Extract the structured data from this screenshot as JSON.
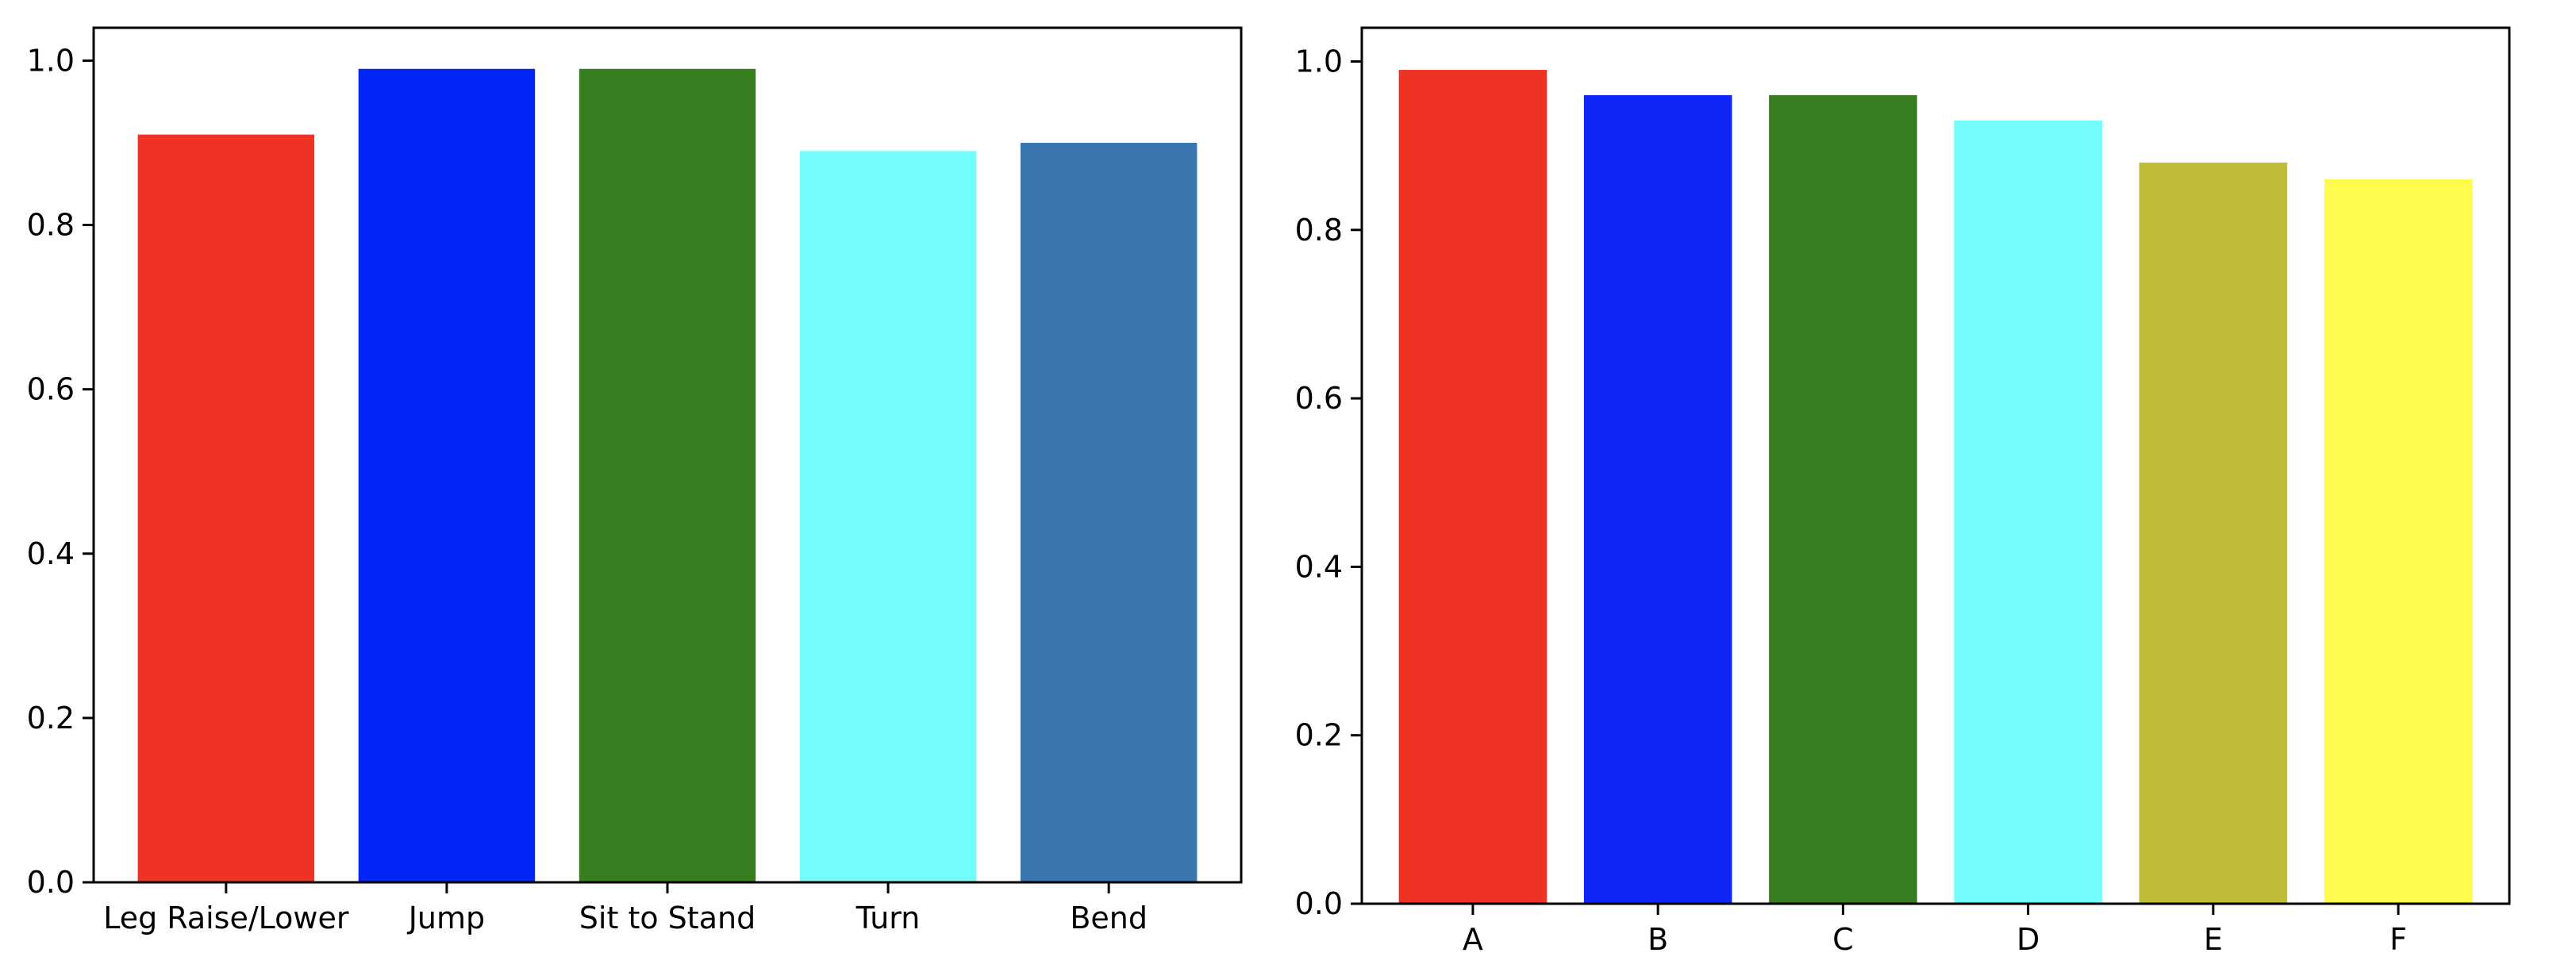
{
  "chart_data": [
    {
      "type": "bar",
      "categories": [
        "Leg Raise/Lower",
        "Jump",
        "Sit to Stand",
        "Turn",
        "Bend"
      ],
      "values": [
        0.91,
        0.99,
        0.99,
        0.89,
        0.9
      ],
      "colors": [
        "#ee3224",
        "#0226f5",
        "#397d21",
        "#72fcfc",
        "#3a77b0"
      ],
      "title": "",
      "xlabel": "",
      "ylabel": "",
      "ylim": [
        0,
        1.04
      ],
      "yticks": [
        0.0,
        0.2,
        0.4,
        0.6,
        0.8,
        1.0
      ],
      "ytick_labels": [
        "0.0",
        "0.2",
        "0.4",
        "0.6",
        "0.8",
        "1.0"
      ],
      "grid": false,
      "legend": "none"
    },
    {
      "type": "bar",
      "categories": [
        "A",
        "B",
        "C",
        "D",
        "E",
        "F"
      ],
      "values": [
        0.99,
        0.96,
        0.96,
        0.93,
        0.88,
        0.86
      ],
      "colors": [
        "#ee3224",
        "#1026f9",
        "#397d21",
        "#72fcfc",
        "#bfbc3a",
        "#fffc4d"
      ],
      "title": "",
      "xlabel": "",
      "ylabel": "",
      "ylim": [
        0,
        1.04
      ],
      "yticks": [
        0.0,
        0.2,
        0.4,
        0.6,
        0.8,
        1.0
      ],
      "ytick_labels": [
        "0.0",
        "0.2",
        "0.4",
        "0.6",
        "0.8",
        "1.0"
      ],
      "grid": false,
      "legend": "none"
    }
  ]
}
